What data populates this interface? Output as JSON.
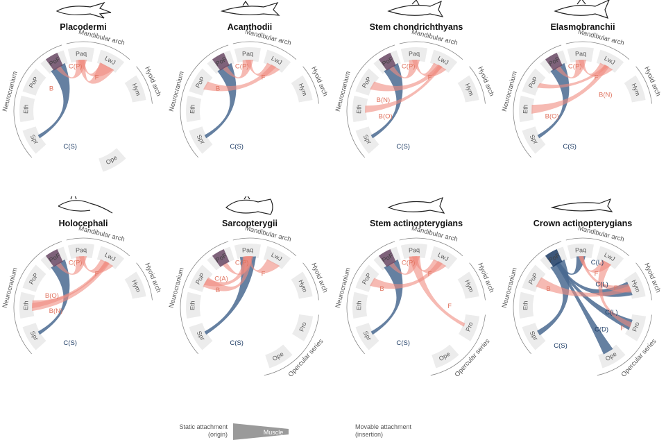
{
  "colors": {
    "segment": "#ececec",
    "blue": "#4a6a91",
    "blue_dark": "#1f3d66",
    "red": "#f08c80",
    "red_text": "#e0735f",
    "gray_text": "#555555",
    "bracket": "#888888",
    "overlap": "#6b4a66"
  },
  "groups": {
    "neurocranium": "Neurocranium",
    "mandibular": "Mandibular arch",
    "hyoid": "Hyoid arch",
    "opercular": "Opercular series"
  },
  "legend": {
    "static": "Static attachment",
    "static_sub": "(origin)",
    "muscle": "Muscle",
    "movable": "Movable attachment",
    "movable_sub": "(insertion)"
  },
  "panels": [
    {
      "title": "Placodermi",
      "icon": "placoderm-fish-icon",
      "segments": [
        "Spr",
        "Eth",
        "PoP",
        "PoF",
        "Paq",
        "LwJ",
        "Hym",
        "Ope"
      ],
      "muscles": [
        {
          "label": "C(S)",
          "color": "blue"
        },
        {
          "label": "C(P)",
          "color": "red"
        },
        {
          "label": "F",
          "color": "red"
        },
        {
          "label": "B",
          "color": "red"
        }
      ]
    },
    {
      "title": "Acanthodii",
      "icon": "acanthodian-fish-icon",
      "segments": [
        "Spr",
        "Eth",
        "PoP",
        "PoF",
        "Paq",
        "LwJ",
        "Hym"
      ],
      "muscles": [
        {
          "label": "C(S)",
          "color": "blue"
        },
        {
          "label": "C(P)",
          "color": "red"
        },
        {
          "label": "F",
          "color": "red"
        },
        {
          "label": "B",
          "color": "red"
        }
      ]
    },
    {
      "title": "Stem chondrichthyans",
      "icon": "stem-chondrichthyan-fish-icon",
      "segments": [
        "Spr",
        "Eth",
        "PoP",
        "PoF",
        "Paq",
        "LwJ",
        "Hym"
      ],
      "muscles": [
        {
          "label": "C(S)",
          "color": "blue"
        },
        {
          "label": "C(P)",
          "color": "red"
        },
        {
          "label": "F",
          "color": "red"
        },
        {
          "label": "B(N)",
          "color": "red"
        },
        {
          "label": "B(O)",
          "color": "red"
        }
      ]
    },
    {
      "title": "Elasmobranchii",
      "icon": "shark-icon",
      "segments": [
        "Spr",
        "Eth",
        "PoP",
        "PoF",
        "Paq",
        "LwJ",
        "Hym"
      ],
      "muscles": [
        {
          "label": "C(S)",
          "color": "blue"
        },
        {
          "label": "C(P)",
          "color": "red"
        },
        {
          "label": "F",
          "color": "red"
        },
        {
          "label": "B(N)",
          "color": "red"
        },
        {
          "label": "B(O)",
          "color": "red"
        }
      ]
    },
    {
      "title": "Holocephali",
      "icon": "chimaera-fish-icon",
      "segments": [
        "Spr",
        "Eth",
        "PoP",
        "PoF",
        "Paq",
        "LwJ",
        "Hym"
      ],
      "muscles": [
        {
          "label": "C(S)",
          "color": "blue"
        },
        {
          "label": "C(P)",
          "color": "red"
        },
        {
          "label": "F",
          "color": "red"
        },
        {
          "label": "B(O)",
          "color": "red"
        },
        {
          "label": "B(N)",
          "color": "red"
        }
      ]
    },
    {
      "title": "Sarcopterygii",
      "icon": "coelacanth-fish-icon",
      "segments": [
        "Spr",
        "Eth",
        "PoP",
        "PoF",
        "Paq",
        "LwJ",
        "Hym",
        "Pro",
        "Ope"
      ],
      "muscles": [
        {
          "label": "C(S)",
          "color": "blue"
        },
        {
          "label": "C(P)",
          "color": "red"
        },
        {
          "label": "C(A)",
          "color": "red"
        },
        {
          "label": "F",
          "color": "red"
        },
        {
          "label": "B",
          "color": "red"
        }
      ]
    },
    {
      "title": "Stem actinopterygians",
      "icon": "stem-actinopterygian-fish-icon",
      "segments": [
        "Spr",
        "Eth",
        "PoP",
        "PoF",
        "Paq",
        "LwJ",
        "Hym",
        "Pro",
        "Ope"
      ],
      "muscles": [
        {
          "label": "C(S)",
          "color": "blue"
        },
        {
          "label": "C(P)",
          "color": "red"
        },
        {
          "label": "F",
          "color": "red"
        },
        {
          "label": "B",
          "color": "red"
        },
        {
          "label": "F",
          "color": "red"
        }
      ]
    },
    {
      "title": "Crown actinopterygians",
      "icon": "sturgeon-fish-icon",
      "segments": [
        "Spr",
        "Eth",
        "PoP",
        "PoF",
        "Paq",
        "LwJ",
        "Hym",
        "Pro",
        "Ope"
      ],
      "muscles": [
        {
          "label": "C(S)",
          "color": "blue"
        },
        {
          "label": "C(L)",
          "color": "blue"
        },
        {
          "label": "C(L)",
          "color": "blue"
        },
        {
          "label": "C(L)",
          "color": "blue"
        },
        {
          "label": "C(D)",
          "color": "blue"
        },
        {
          "label": "F",
          "color": "red"
        },
        {
          "label": "F",
          "color": "red"
        },
        {
          "label": "F",
          "color": "red"
        },
        {
          "label": "B",
          "color": "red"
        }
      ]
    }
  ]
}
